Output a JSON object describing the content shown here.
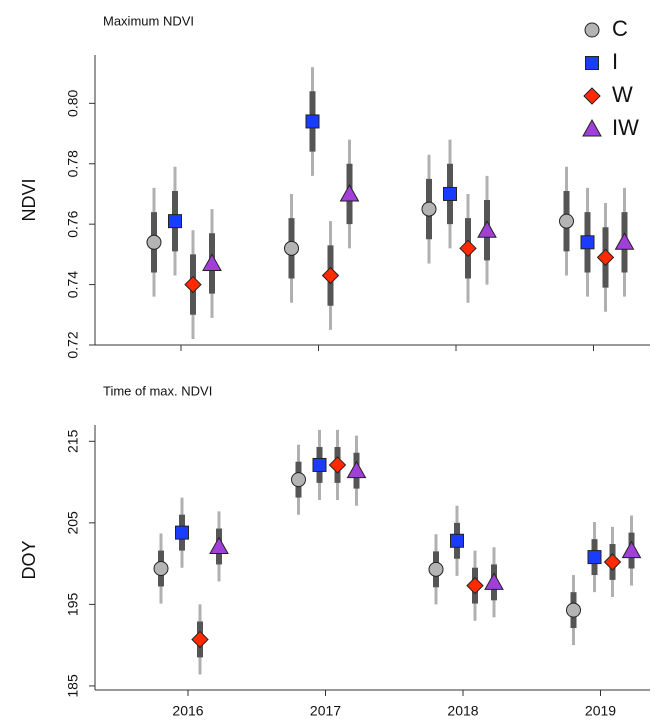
{
  "chart_data": [
    {
      "type": "scatter",
      "title": "Maximum NDVI",
      "y_label": "NDVI",
      "ylim": [
        0.72,
        0.816
      ],
      "yticks": [
        0.72,
        0.74,
        0.76,
        0.78,
        {
          "value": 0.8,
          "label": "0.80"
        }
      ],
      "series": [
        {
          "name": "C",
          "color": "#b4b4b4",
          "marker": "circle",
          "values": [
            0.754,
            0.752,
            0.765,
            0.761
          ],
          "err_inner": [
            0.01,
            0.01,
            0.01,
            0.01
          ],
          "err_outer": [
            0.018,
            0.018,
            0.018,
            0.018
          ]
        },
        {
          "name": "I",
          "color": "#1a3cff",
          "marker": "square",
          "values": [
            0.761,
            0.794,
            0.77,
            0.754
          ],
          "err_inner": [
            0.01,
            0.01,
            0.01,
            0.01
          ],
          "err_outer": [
            0.018,
            0.018,
            0.018,
            0.018
          ]
        },
        {
          "name": "W",
          "color": "#ff2a00",
          "marker": "diamond",
          "values": [
            0.74,
            0.743,
            0.752,
            0.749
          ],
          "err_inner": [
            0.01,
            0.01,
            0.01,
            0.01
          ],
          "err_outer": [
            0.018,
            0.018,
            0.018,
            0.018
          ]
        },
        {
          "name": "IW",
          "color": "#a040d8",
          "marker": "triangle",
          "values": [
            0.747,
            0.77,
            0.758,
            0.754
          ],
          "err_inner": [
            0.01,
            0.01,
            0.01,
            0.01
          ],
          "err_outer": [
            0.018,
            0.018,
            0.018,
            0.018
          ]
        }
      ]
    },
    {
      "type": "scatter",
      "title": "Time of max. NDVI",
      "y_label": "DOY",
      "categories": [
        "2016",
        "2017",
        "2018",
        "2019"
      ],
      "ylim": [
        184.5,
        217
      ],
      "yticks": [
        185,
        195,
        205,
        215
      ],
      "series": [
        {
          "color": "#b4b4b4",
          "marker": "circle",
          "values": [
            199.4,
            210.3,
            199.3,
            194.3
          ],
          "err_inner": [
            2.2,
            2.2,
            2.2,
            2.2
          ],
          "err_outer": [
            4.3,
            4.3,
            4.3,
            4.3
          ]
        },
        {
          "color": "#1a3cff",
          "marker": "square",
          "values": [
            203.8,
            212.1,
            202.8,
            200.8
          ],
          "err_inner": [
            2.2,
            2.2,
            2.2,
            2.2
          ],
          "err_outer": [
            4.3,
            4.3,
            4.3,
            4.3
          ]
        },
        {
          "color": "#ff2a00",
          "marker": "diamond",
          "values": [
            190.7,
            212.1,
            197.3,
            200.2
          ],
          "err_inner": [
            2.2,
            2.2,
            2.2,
            2.2
          ],
          "err_outer": [
            4.3,
            4.3,
            4.3,
            4.3
          ]
        },
        {
          "color": "#a040d8",
          "marker": "triangle",
          "values": [
            202.1,
            211.4,
            197.7,
            201.6
          ],
          "err_inner": [
            2.2,
            2.2,
            2.2,
            2.2
          ],
          "err_outer": [
            4.3,
            4.3,
            4.3,
            4.3
          ]
        }
      ]
    }
  ]
}
